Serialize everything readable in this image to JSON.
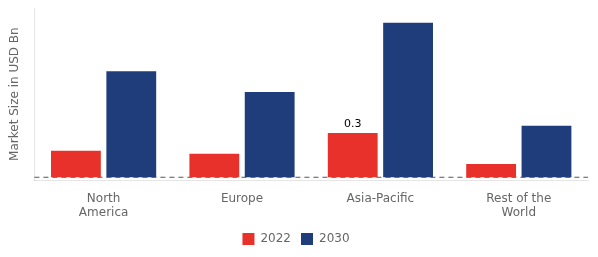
{
  "chart_data": {
    "type": "bar",
    "categories": [
      "North\nAmerica",
      "Europe",
      "Asia-Pacific",
      "Rest of the\nWorld"
    ],
    "series": [
      {
        "name": "2022",
        "color": "#e8312a",
        "values": [
          0.18,
          0.16,
          0.3,
          0.09
        ]
      },
      {
        "name": "2030",
        "color": "#1f3d7a",
        "values": [
          0.72,
          0.58,
          1.05,
          0.35
        ]
      }
    ],
    "ylabel": "Market Size in USD Bn",
    "ylim": [
      -0.02,
      1.15
    ],
    "yticks": [],
    "tick_labels": "x",
    "grid": false,
    "legend": "bottom",
    "annotations": [
      {
        "text": "0.3",
        "category": "Asia-Pacific",
        "series": "2022"
      }
    ],
    "reference_lines": [
      {
        "y": 0.0,
        "line_style": "dashed"
      }
    ]
  }
}
